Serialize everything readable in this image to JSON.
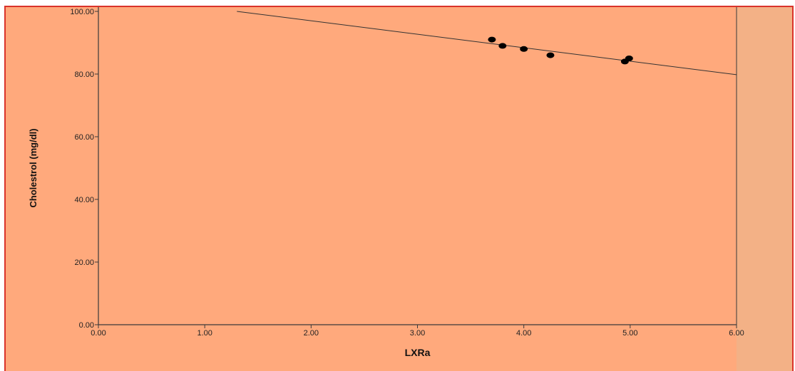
{
  "colors": {
    "plot_background": "#ffa97c",
    "right_panel": "#f3b186",
    "border": "#d9332b",
    "axis": "#3a3a3a",
    "points": "#000000",
    "fit_line": "#333333"
  },
  "chart_data": {
    "type": "scatter",
    "title": "",
    "xlabel": "LXRa",
    "ylabel": "Cholestrol (mg/dl)",
    "xlim": [
      0,
      6
    ],
    "ylim": [
      0,
      100
    ],
    "xticks": [
      "0.00",
      "1.00",
      "2.00",
      "3.00",
      "4.00",
      "5.00",
      "6.00"
    ],
    "yticks": [
      "0.00",
      "20.00",
      "40.00",
      "60.00",
      "80.00",
      "100.00"
    ],
    "grid": false,
    "points": [
      {
        "x": 3.7,
        "y": 91.0
      },
      {
        "x": 3.8,
        "y": 89.0
      },
      {
        "x": 4.0,
        "y": 88.0
      },
      {
        "x": 4.25,
        "y": 86.0
      },
      {
        "x": 4.95,
        "y": 84.0
      },
      {
        "x": 4.99,
        "y": 85.0
      }
    ],
    "fit_line": {
      "slope": -4.3,
      "intercept": 105.6
    }
  }
}
